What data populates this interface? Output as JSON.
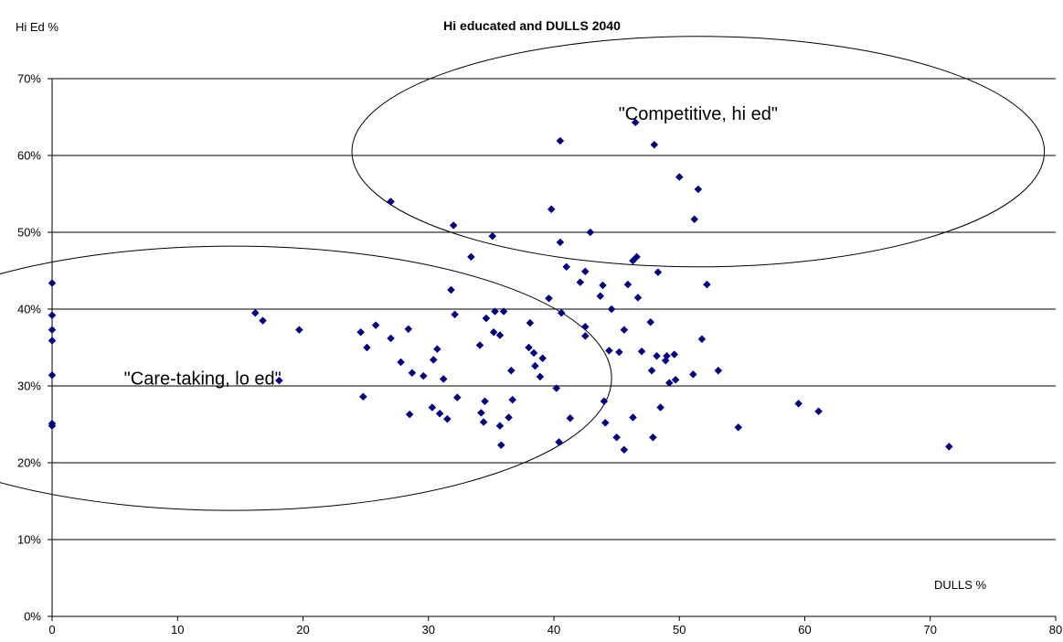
{
  "chart_data": {
    "type": "scatter",
    "title": "Hi educated and DULLS 2040",
    "xlabel": "DULLS %",
    "ylabel": "Hi Ed %",
    "xlim": [
      0,
      80
    ],
    "ylim": [
      0,
      0.7
    ],
    "xticks": [
      "0",
      "10",
      "20",
      "30",
      "40",
      "50",
      "60",
      "70",
      "80"
    ],
    "yticks": [
      "0%",
      "10%",
      "20%",
      "30%",
      "40%",
      "50%",
      "60%",
      "70%"
    ],
    "grid": "horizontal",
    "marker_color": "#000080",
    "annotations": [
      {
        "text": "\"Care-taking, lo ed\"",
        "x": 12,
        "y": 0.31
      },
      {
        "text": "\"Competitive, hi ed\"",
        "x": 51.5,
        "y": 0.655
      }
    ],
    "regions": [
      {
        "cx": 14.4,
        "cy": 0.31,
        "rx": 30.2,
        "ry": 0.172
      },
      {
        "cx": 51.5,
        "cy": 0.605,
        "rx": 27.6,
        "ry": 0.15
      }
    ],
    "series": [
      {
        "points": [
          [
            0,
            0.434
          ],
          [
            0,
            0.392
          ],
          [
            0,
            0.373
          ],
          [
            0,
            0.359
          ],
          [
            0,
            0.314
          ],
          [
            0,
            0.251
          ],
          [
            0,
            0.248
          ],
          [
            16.2,
            0.395
          ],
          [
            16.8,
            0.385
          ],
          [
            18.1,
            0.307
          ],
          [
            19.7,
            0.373
          ],
          [
            24.6,
            0.37
          ],
          [
            24.8,
            0.286
          ],
          [
            25.1,
            0.35
          ],
          [
            25.8,
            0.379
          ],
          [
            27.0,
            0.54
          ],
          [
            27.0,
            0.362
          ],
          [
            27.8,
            0.331
          ],
          [
            28.4,
            0.374
          ],
          [
            28.5,
            0.263
          ],
          [
            28.7,
            0.317
          ],
          [
            29.6,
            0.313
          ],
          [
            30.3,
            0.272
          ],
          [
            30.4,
            0.334
          ],
          [
            30.7,
            0.348
          ],
          [
            30.9,
            0.264
          ],
          [
            31.2,
            0.309
          ],
          [
            31.5,
            0.257
          ],
          [
            31.8,
            0.425
          ],
          [
            32.0,
            0.509
          ],
          [
            32.1,
            0.393
          ],
          [
            32.3,
            0.285
          ],
          [
            33.4,
            0.468
          ],
          [
            34.1,
            0.353
          ],
          [
            34.2,
            0.265
          ],
          [
            34.4,
            0.253
          ],
          [
            34.5,
            0.28
          ],
          [
            34.6,
            0.388
          ],
          [
            35.1,
            0.495
          ],
          [
            35.2,
            0.37
          ],
          [
            35.3,
            0.397
          ],
          [
            35.7,
            0.366
          ],
          [
            35.7,
            0.248
          ],
          [
            35.8,
            0.223
          ],
          [
            36.0,
            0.397
          ],
          [
            36.4,
            0.259
          ],
          [
            36.6,
            0.32
          ],
          [
            36.7,
            0.282
          ],
          [
            38.0,
            0.35
          ],
          [
            38.1,
            0.382
          ],
          [
            38.4,
            0.343
          ],
          [
            38.5,
            0.326
          ],
          [
            38.9,
            0.312
          ],
          [
            39.1,
            0.336
          ],
          [
            39.6,
            0.414
          ],
          [
            39.8,
            0.53
          ],
          [
            40.2,
            0.297
          ],
          [
            40.4,
            0.227
          ],
          [
            40.5,
            0.619
          ],
          [
            40.5,
            0.487
          ],
          [
            40.6,
            0.395
          ],
          [
            41.0,
            0.455
          ],
          [
            41.3,
            0.258
          ],
          [
            42.1,
            0.435
          ],
          [
            42.5,
            0.449
          ],
          [
            42.5,
            0.377
          ],
          [
            42.5,
            0.365
          ],
          [
            42.9,
            0.5
          ],
          [
            43.7,
            0.417
          ],
          [
            43.9,
            0.431
          ],
          [
            44.0,
            0.28
          ],
          [
            44.1,
            0.252
          ],
          [
            44.4,
            0.346
          ],
          [
            44.6,
            0.4
          ],
          [
            45.0,
            0.233
          ],
          [
            45.2,
            0.344
          ],
          [
            45.6,
            0.217
          ],
          [
            45.6,
            0.373
          ],
          [
            45.9,
            0.432
          ],
          [
            46.3,
            0.259
          ],
          [
            46.3,
            0.463
          ],
          [
            46.5,
            0.643
          ],
          [
            46.6,
            0.468
          ],
          [
            46.7,
            0.415
          ],
          [
            47.0,
            0.345
          ],
          [
            47.7,
            0.383
          ],
          [
            47.8,
            0.32
          ],
          [
            47.9,
            0.233
          ],
          [
            48.0,
            0.614
          ],
          [
            48.2,
            0.339
          ],
          [
            48.3,
            0.448
          ],
          [
            48.5,
            0.272
          ],
          [
            48.9,
            0.333
          ],
          [
            49.0,
            0.339
          ],
          [
            49.2,
            0.304
          ],
          [
            49.6,
            0.341
          ],
          [
            49.7,
            0.308
          ],
          [
            50.0,
            0.572
          ],
          [
            51.1,
            0.315
          ],
          [
            51.2,
            0.517
          ],
          [
            51.5,
            0.556
          ],
          [
            51.8,
            0.361
          ],
          [
            52.2,
            0.432
          ],
          [
            53.1,
            0.32
          ],
          [
            54.7,
            0.246
          ],
          [
            59.5,
            0.277
          ],
          [
            61.1,
            0.267
          ],
          [
            71.5,
            0.221
          ]
        ]
      }
    ]
  }
}
